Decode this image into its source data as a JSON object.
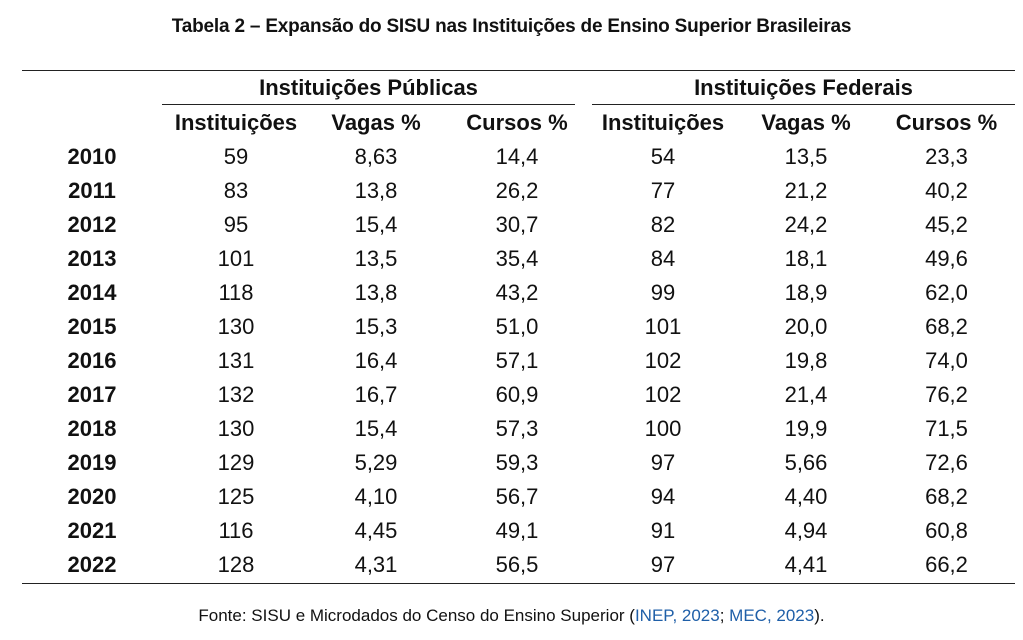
{
  "title": "Tabela 2 – Expansão do SISU nas Instituições de Ensino Superior Brasileiras",
  "group_headers": {
    "publicas": "Instituições Públicas",
    "federais": "Instituições Federais"
  },
  "column_headers": {
    "pub_inst": "Instituições",
    "pub_vagas": "Vagas %",
    "pub_cursos": "Cursos %",
    "fed_inst": "Instituições",
    "fed_vagas": "Vagas %",
    "fed_cursos": "Cursos %"
  },
  "rows": [
    [
      "2010",
      "59",
      "8,63",
      "14,4",
      "54",
      "13,5",
      "23,3"
    ],
    [
      "2011",
      "83",
      "13,8",
      "26,2",
      "77",
      "21,2",
      "40,2"
    ],
    [
      "2012",
      "95",
      "15,4",
      "30,7",
      "82",
      "24,2",
      "45,2"
    ],
    [
      "2013",
      "101",
      "13,5",
      "35,4",
      "84",
      "18,1",
      "49,6"
    ],
    [
      "2014",
      "118",
      "13,8",
      "43,2",
      "99",
      "18,9",
      "62,0"
    ],
    [
      "2015",
      "130",
      "15,3",
      "51,0",
      "101",
      "20,0",
      "68,2"
    ],
    [
      "2016",
      "131",
      "16,4",
      "57,1",
      "102",
      "19,8",
      "74,0"
    ],
    [
      "2017",
      "132",
      "16,7",
      "60,9",
      "102",
      "21,4",
      "76,2"
    ],
    [
      "2018",
      "130",
      "15,4",
      "57,3",
      "100",
      "19,9",
      "71,5"
    ],
    [
      "2019",
      "129",
      "5,29",
      "59,3",
      "97",
      "5,66",
      "72,6"
    ],
    [
      "2020",
      "125",
      "4,10",
      "56,7",
      "94",
      "4,40",
      "68,2"
    ],
    [
      "2021",
      "116",
      "4,45",
      "49,1",
      "91",
      "4,94",
      "60,8"
    ],
    [
      "2022",
      "128",
      "4,31",
      "56,5",
      "97",
      "4,41",
      "66,2"
    ]
  ],
  "source": {
    "prefix": "Fonte: SISU e Microdados do Censo do Ensino Superior (",
    "link1": "INEP, 2023",
    "sep": "; ",
    "link2": "MEC, 2023",
    "suffix": ").",
    "link_color": "#1f5fa8"
  }
}
